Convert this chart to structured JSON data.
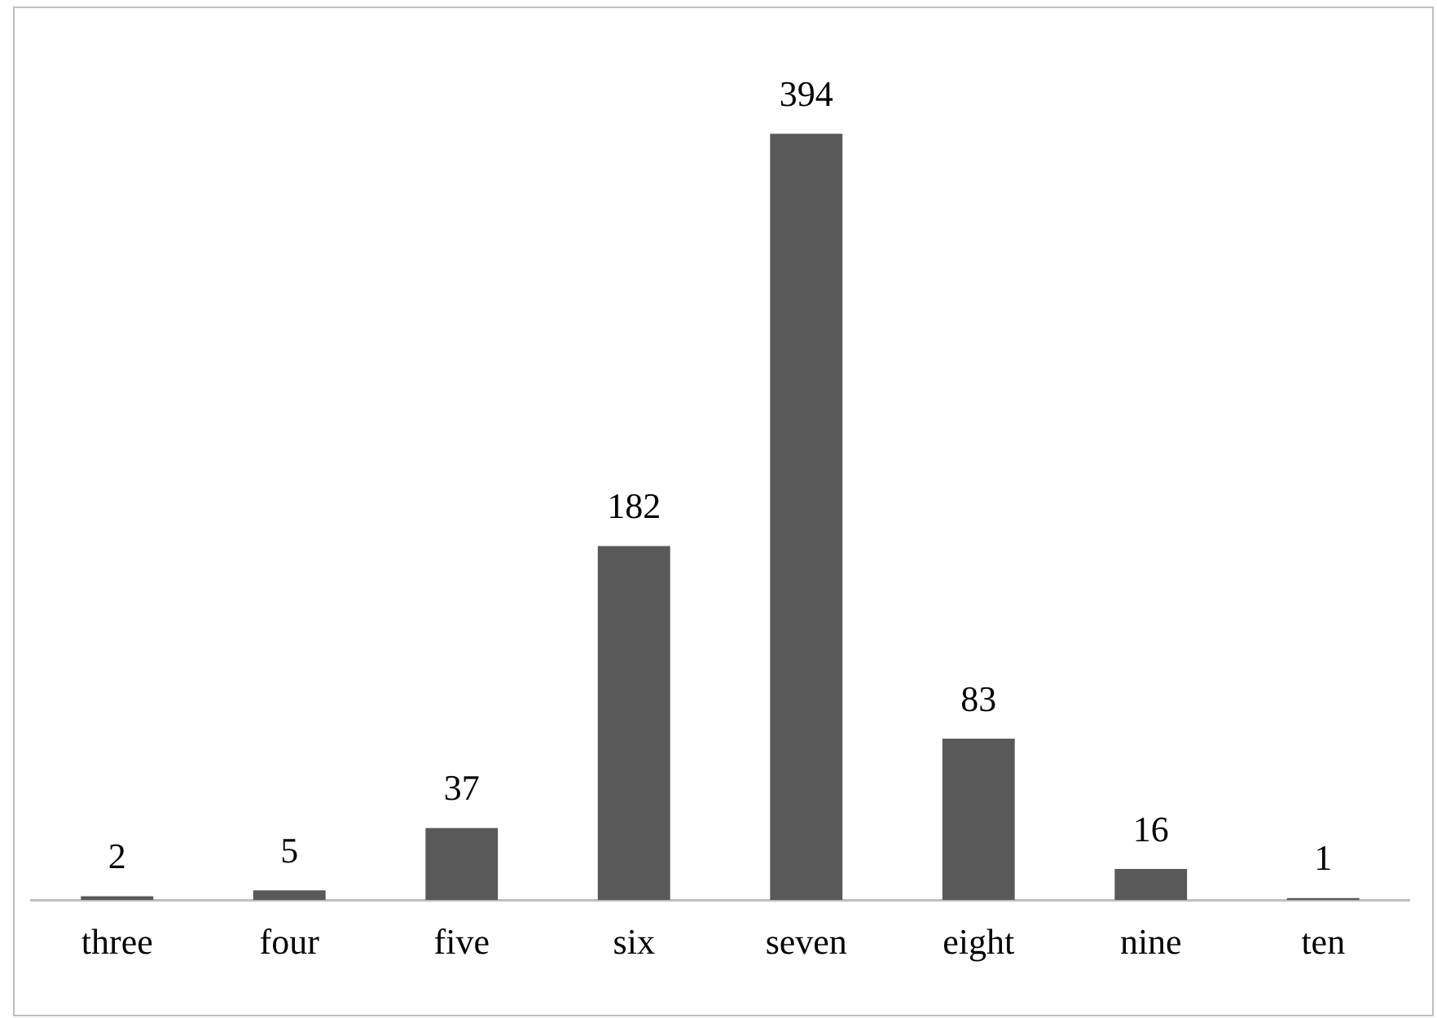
{
  "chart_data": {
    "type": "bar",
    "categories": [
      "three",
      "four",
      "five",
      "six",
      "seven",
      "eight",
      "nine",
      "ten"
    ],
    "values": [
      2,
      5,
      37,
      182,
      394,
      83,
      16,
      1
    ],
    "color": "#595959",
    "data_labels": true,
    "grid": false,
    "legend": false
  }
}
